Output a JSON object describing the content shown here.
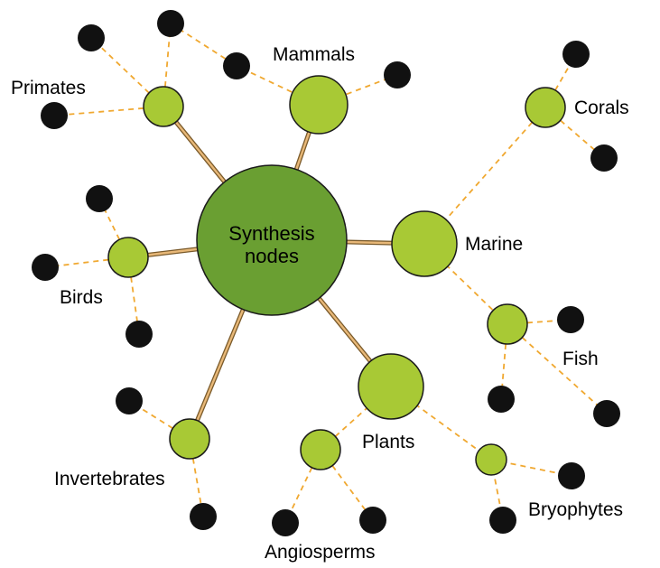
{
  "diagram": {
    "center_label_line1": "Synthesis",
    "center_label_line2": "nodes",
    "labels": {
      "primates": "Primates",
      "mammals": "Mammals",
      "corals": "Corals",
      "marine": "Marine",
      "birds": "Birds",
      "fish": "Fish",
      "plants": "Plants",
      "invertebrates": "Invertebrates",
      "bryophytes": "Bryophytes",
      "angiosperms": "Angiosperms"
    },
    "colors": {
      "center_fill": "#6a9f32",
      "node_fill": "#a8c935",
      "leaf_fill": "#111111",
      "solid_edge": "#c8954a",
      "dashed_edge": "#f0a830"
    }
  }
}
